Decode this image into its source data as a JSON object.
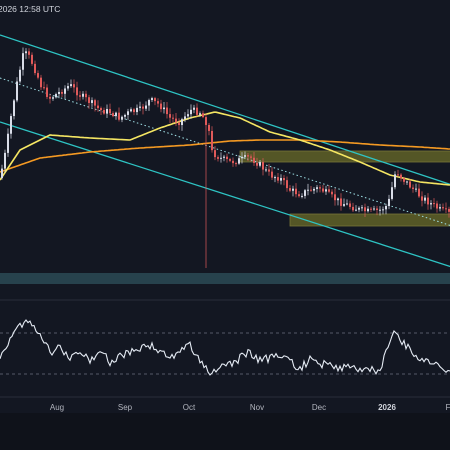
{
  "header": {
    "timestamp": "2026 12:58 UTC"
  },
  "colors": {
    "background": "#131722",
    "channel": "#2ec4c4",
    "dotted_mid": "#9fe0e6",
    "ma_fast": "#f5e663",
    "ma_slow": "#f59a23",
    "zone_fill": "#8a8a2a",
    "zone_stroke": "#c9c24a",
    "support_band": "#2b4a55",
    "up": "#d9dde8",
    "down": "#e05a5a",
    "rsi": "#e6ecf5",
    "separator": "#2a2e39"
  },
  "chart_data": [
    {
      "type": "candlestick",
      "x_axis": {
        "ticks": [
          "Aug",
          "Sep",
          "Oct",
          "Nov",
          "Dec",
          "2026",
          "F"
        ],
        "bold_ticks": [
          "2026"
        ]
      },
      "series": [
        {
          "name": "price",
          "kind": "candles"
        },
        {
          "name": "",
          "kind": "moving-average",
          "color": "ma_fast"
        },
        {
          "name": "",
          "kind": "moving-average",
          "color": "ma_slow"
        }
      ],
      "annotations": [
        {
          "kind": "descending-channel"
        },
        {
          "kind": "resistance-zone"
        },
        {
          "kind": "support-zone"
        },
        {
          "kind": "support-band"
        }
      ],
      "grid": false,
      "legend": "none"
    },
    {
      "type": "line",
      "panel": "oscillator",
      "reference_lines": "dashed upper and lower bands",
      "grid": false
    }
  ]
}
